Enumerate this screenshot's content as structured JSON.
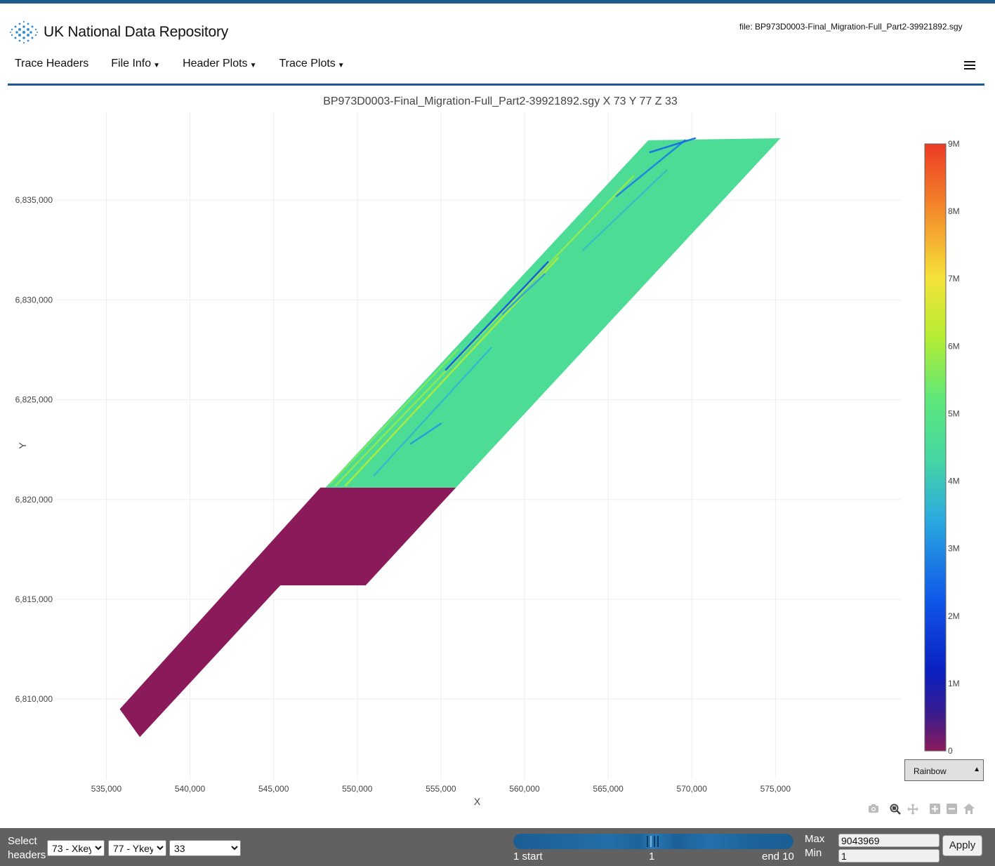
{
  "header": {
    "logo_text": "UK National Data Repository",
    "file_label": "file: BP973D0003-Final_Migration-Full_Part2-39921892.sgy"
  },
  "nav": {
    "items": [
      {
        "label": "Trace Headers",
        "dropdown": false
      },
      {
        "label": "File Info",
        "dropdown": true
      },
      {
        "label": "Header Plots",
        "dropdown": true
      },
      {
        "label": "Trace Plots",
        "dropdown": true
      }
    ],
    "menu_icon": "hamburger-icon"
  },
  "chart_data": {
    "type": "heatmap",
    "title": "BP973D0003-Final_Migration-Full_Part2-39921892.sgy X 73 Y 77 Z 33",
    "xlabel": "X",
    "ylabel": "Y",
    "xlim": [
      532000,
      582500
    ],
    "ylim": [
      6806000,
      6839400
    ],
    "xticks": [
      535000,
      540000,
      545000,
      550000,
      555000,
      560000,
      565000,
      570000,
      575000
    ],
    "xtick_labels": [
      "535,000",
      "540,000",
      "545,000",
      "550,000",
      "555,000",
      "560,000",
      "565,000",
      "570,000",
      "575,000"
    ],
    "yticks": [
      6810000,
      6815000,
      6820000,
      6825000,
      6830000,
      6835000
    ],
    "ytick_labels": [
      "6,810,000",
      "6,815,000",
      "6,820,000",
      "6,825,000",
      "6,830,000",
      "6,835,000"
    ],
    "grid": true,
    "colorscale": "Rainbow",
    "colorbar": {
      "range": [
        0,
        9000000
      ],
      "ticks": [
        0,
        1000000,
        2000000,
        3000000,
        4000000,
        5000000,
        6000000,
        7000000,
        8000000,
        9000000
      ],
      "tick_labels": [
        "0",
        "1M",
        "2M",
        "3M",
        "4M",
        "5M",
        "6M",
        "7M",
        "8M",
        "9M"
      ]
    },
    "regions": [
      {
        "name": "low",
        "value": 0,
        "polygon": [
          [
            535800,
            6809500
          ],
          [
            537000,
            6808100
          ],
          [
            545400,
            6815700
          ],
          [
            550500,
            6815700
          ],
          [
            555900,
            6820600
          ],
          [
            547800,
            6820600
          ]
        ]
      },
      {
        "name": "survey",
        "value": 4600000,
        "polygon": [
          [
            548100,
            6820600
          ],
          [
            567400,
            6838000
          ],
          [
            575300,
            6838100
          ],
          [
            555900,
            6820600
          ]
        ]
      }
    ],
    "streaks": [
      {
        "value": 5800000,
        "from": [
          548700,
          6820700
        ],
        "to": [
          566500,
          6836200
        ]
      },
      {
        "value": 6100000,
        "from": [
          549300,
          6820700
        ],
        "to": [
          562000,
          6832100
        ]
      },
      {
        "value": 5600000,
        "from": [
          548400,
          6820800
        ],
        "to": [
          556000,
          6827500
        ]
      },
      {
        "value": 2200000,
        "from": [
          555300,
          6826500
        ],
        "to": [
          561400,
          6831900
        ]
      },
      {
        "value": 2800000,
        "from": [
          565500,
          6835200
        ],
        "to": [
          569600,
          6838000
        ]
      },
      {
        "value": 3200000,
        "from": [
          553200,
          6822800
        ],
        "to": [
          555000,
          6823800
        ]
      },
      {
        "value": 3300000,
        "from": [
          558700,
          6829300
        ],
        "to": [
          561200,
          6831300
        ]
      },
      {
        "value": 2500000,
        "from": [
          567500,
          6837400
        ],
        "to": [
          570200,
          6838100
        ]
      },
      {
        "value": 3700000,
        "from": [
          551000,
          6821200
        ],
        "to": [
          558000,
          6827600
        ]
      },
      {
        "value": 3800000,
        "from": [
          563500,
          6832500
        ],
        "to": [
          568500,
          6836500
        ]
      }
    ]
  },
  "colormap": {
    "selected": "Rainbow",
    "arrow": "▲"
  },
  "modebar": [
    "camera-icon",
    "zoom-icon",
    "pan-icon",
    "zoom-in-icon",
    "zoom-out-icon",
    "home-icon"
  ],
  "footer": {
    "select_label_1": "Select",
    "select_label_2": "headers",
    "x_select": "73 - Xkey",
    "y_select": "77 - Ykey",
    "z_select": "33",
    "slider_start": "1 start",
    "slider_mid": "1",
    "slider_end": "end 10",
    "max_label": "Max",
    "min_label": "Min",
    "max_value": "9043969",
    "min_value": "1",
    "apply_label": "Apply"
  }
}
